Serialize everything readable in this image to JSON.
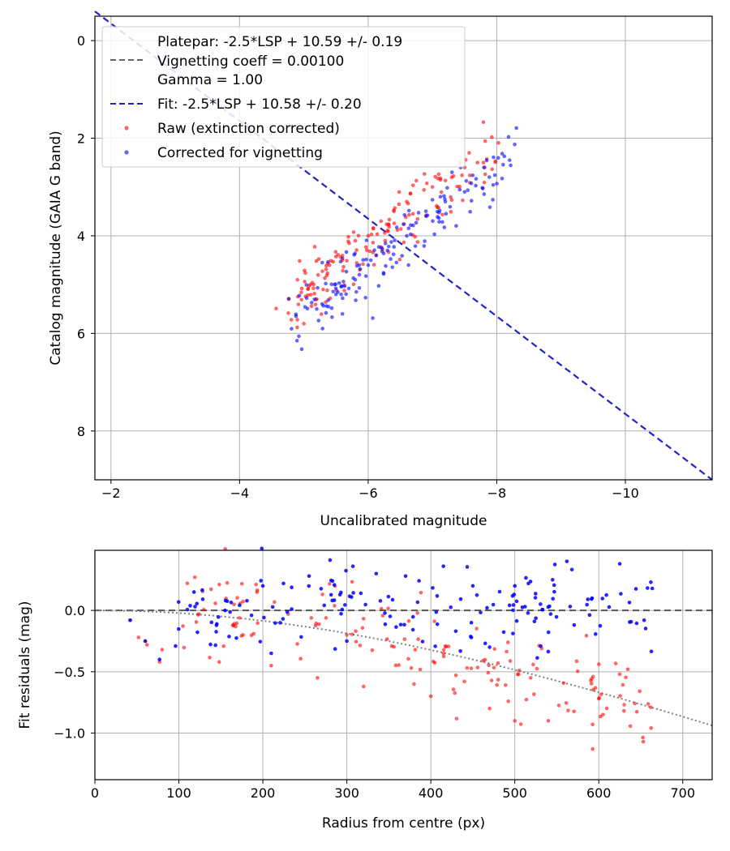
{
  "colors": {
    "raw": "#ff0000",
    "corrected": "#0000ff",
    "fit": "#2222cc",
    "platepar": "#666666",
    "grid": "#b0b0b0",
    "vignette_curve": "#808080"
  },
  "chart_data": [
    {
      "type": "scatter",
      "xlabel": "Uncalibrated magnitude",
      "ylabel": "Catalog magnitude (GAIA G band)",
      "xlim": [
        -1.75,
        -11.35
      ],
      "ylim": [
        9.0,
        -0.5
      ],
      "x_ticks": [
        -2,
        -4,
        -6,
        -8,
        -10
      ],
      "x_tick_labels": [
        "−2",
        "−4",
        "−6",
        "−8",
        "−10"
      ],
      "y_ticks": [
        0,
        2,
        4,
        6,
        8
      ],
      "y_tick_labels": [
        "0",
        "2",
        "4",
        "6",
        "8"
      ],
      "grid": true,
      "legend_position": "upper-left",
      "legend": {
        "platepar_lines": [
          "Platepar: -2.5*LSP + 10.59 +/- 0.19",
          "Vignetting coeff = 0.00100",
          "Gamma = 1.00"
        ],
        "fit_label": "Fit: -2.5*LSP + 10.58 +/- 0.20",
        "raw_label": "Raw (extinction corrected)",
        "corrected_label": "Corrected for vignetting"
      },
      "fit_line": {
        "label": "Fit: -2.5*LSP + 10.58 +/- 0.20",
        "x_start": -1.75,
        "x_end": -11.35,
        "slope": -1.0,
        "intercept": -2.35
      },
      "scatter_cloud": {
        "raw": {
          "center_x": [
            -4.95,
            -7.9
          ],
          "center_y_at_x": [
            5.3,
            2.3
          ],
          "spread_y": 0.35,
          "count": 150
        },
        "corrected": {
          "center_x": [
            -5.1,
            -8.2
          ],
          "center_y_at_x": [
            5.5,
            2.45
          ],
          "spread_y": 0.3,
          "count": 150
        }
      },
      "raw_points": [
        {
          "x": -5.0,
          "y": 5.8
        },
        {
          "x": -5.2,
          "y": 5.3
        },
        {
          "x": -5.4,
          "y": 4.6
        },
        {
          "x": -5.6,
          "y": 4.5
        },
        {
          "x": -5.8,
          "y": 4.1
        },
        {
          "x": -6.0,
          "y": 4.0
        },
        {
          "x": -6.2,
          "y": 3.7
        },
        {
          "x": -6.4,
          "y": 3.5
        },
        {
          "x": -6.6,
          "y": 3.3
        },
        {
          "x": -7.0,
          "y": 3.0
        },
        {
          "x": -7.3,
          "y": 2.8
        },
        {
          "x": -7.5,
          "y": 2.6
        },
        {
          "x": -7.7,
          "y": 2.5
        },
        {
          "x": -5.1,
          "y": 5.0
        },
        {
          "x": -5.3,
          "y": 5.1
        },
        {
          "x": -4.9,
          "y": 4.9
        }
      ],
      "corrected_points": [
        {
          "x": -5.2,
          "y": 5.5
        },
        {
          "x": -5.5,
          "y": 5.2
        },
        {
          "x": -5.8,
          "y": 4.9
        },
        {
          "x": -6.0,
          "y": 4.6
        },
        {
          "x": -6.3,
          "y": 4.3
        },
        {
          "x": -6.6,
          "y": 4.0
        },
        {
          "x": -6.9,
          "y": 3.6
        },
        {
          "x": -7.2,
          "y": 3.3
        },
        {
          "x": -7.5,
          "y": 3.1
        },
        {
          "x": -7.8,
          "y": 2.6
        },
        {
          "x": -8.2,
          "y": 2.45
        },
        {
          "x": -5.6,
          "y": 5.6
        }
      ]
    },
    {
      "type": "scatter",
      "xlabel": "Radius from centre (px)",
      "ylabel": "Fit residuals (mag)",
      "xlim": [
        0,
        735
      ],
      "ylim": [
        -1.38,
        0.49
      ],
      "x_ticks": [
        0,
        100,
        200,
        300,
        400,
        500,
        600,
        700
      ],
      "x_tick_labels": [
        "0",
        "100",
        "200",
        "300",
        "400",
        "500",
        "600",
        "700"
      ],
      "y_ticks": [
        0.0,
        -0.5,
        -1.0
      ],
      "y_tick_labels": [
        "0.0",
        "−0.5",
        "−1.0"
      ],
      "grid": true,
      "zero_line": {
        "y": 0.0
      },
      "vignetting_curve": {
        "coeff": 0.001,
        "description": "-2.5*log10(cos^4(atan(r*coeff)))"
      },
      "raw_points": [
        {
          "x": 42,
          "y": -0.08
        },
        {
          "x": 52,
          "y": -0.22
        },
        {
          "x": 60,
          "y": -0.25
        },
        {
          "x": 62,
          "y": -0.28
        },
        {
          "x": 77,
          "y": -0.42
        },
        {
          "x": 80,
          "y": -0.32
        },
        {
          "x": 148,
          "y": -0.42
        },
        {
          "x": 210,
          "y": -0.45
        },
        {
          "x": 265,
          "y": -0.55
        },
        {
          "x": 320,
          "y": -0.62
        },
        {
          "x": 380,
          "y": -0.6
        },
        {
          "x": 400,
          "y": -0.7
        },
        {
          "x": 440,
          "y": -0.58
        },
        {
          "x": 470,
          "y": -0.8
        },
        {
          "x": 500,
          "y": -0.9
        },
        {
          "x": 540,
          "y": -0.9
        },
        {
          "x": 600,
          "y": -0.72
        },
        {
          "x": 605,
          "y": -0.85
        },
        {
          "x": 625,
          "y": -0.52
        },
        {
          "x": 653,
          "y": -1.07
        },
        {
          "x": 662,
          "y": -0.79
        },
        {
          "x": 480,
          "y": -0.43
        },
        {
          "x": 415,
          "y": -0.35
        },
        {
          "x": 300,
          "y": -0.2
        }
      ],
      "corrected_points": [
        {
          "x": 42,
          "y": -0.08
        },
        {
          "x": 60,
          "y": -0.25
        },
        {
          "x": 77,
          "y": -0.4
        },
        {
          "x": 118,
          "y": 0.15
        },
        {
          "x": 155,
          "y": 0.0
        },
        {
          "x": 200,
          "y": 0.2
        },
        {
          "x": 255,
          "y": 0.28
        },
        {
          "x": 280,
          "y": 0.41
        },
        {
          "x": 335,
          "y": 0.3
        },
        {
          "x": 370,
          "y": 0.28
        },
        {
          "x": 415,
          "y": 0.36
        },
        {
          "x": 450,
          "y": 0.2
        },
        {
          "x": 500,
          "y": 0.2
        },
        {
          "x": 545,
          "y": 0.25
        },
        {
          "x": 562,
          "y": 0.4
        },
        {
          "x": 592,
          "y": 0.1
        },
        {
          "x": 625,
          "y": 0.38
        },
        {
          "x": 662,
          "y": 0.23
        },
        {
          "x": 654,
          "y": -0.08
        },
        {
          "x": 470,
          "y": -0.3
        },
        {
          "x": 300,
          "y": -0.25
        },
        {
          "x": 210,
          "y": -0.35
        }
      ],
      "scatter_cloud": {
        "raw": {
          "x_range": [
            95,
            665
          ],
          "trend": "follows vignetting curve",
          "spread": 0.18,
          "count": 150
        },
        "corrected": {
          "x_range": [
            95,
            665
          ],
          "center": 0.0,
          "spread": 0.16,
          "count": 150
        }
      }
    }
  ]
}
